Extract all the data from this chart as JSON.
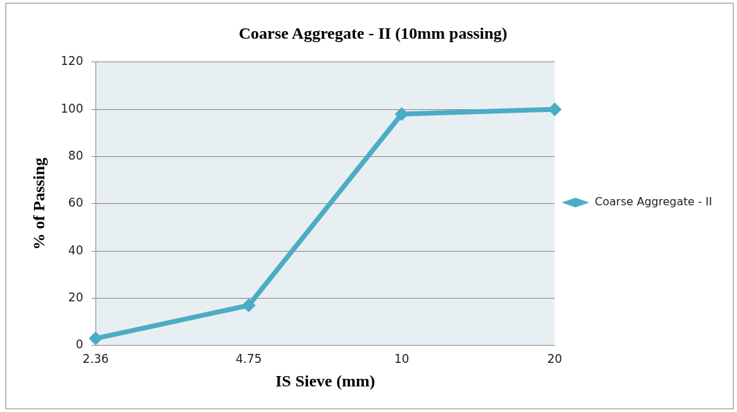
{
  "chart_data": {
    "type": "line",
    "title": "Coarse Aggregate - II (10mm passing)",
    "xlabel": "IS Sieve (mm)",
    "ylabel": "% of Passing",
    "categories": [
      "2.36",
      "4.75",
      "10",
      "20"
    ],
    "series": [
      {
        "name": "Coarse Aggregate - II",
        "color": "#4bacc6",
        "values": [
          3,
          17,
          98,
          100
        ]
      }
    ],
    "ylim": [
      0,
      120
    ],
    "yticks": [
      0,
      20,
      40,
      60,
      80,
      100,
      120
    ],
    "grid": "y",
    "legend": "right",
    "marker": "diamond",
    "line_style": "solid"
  }
}
